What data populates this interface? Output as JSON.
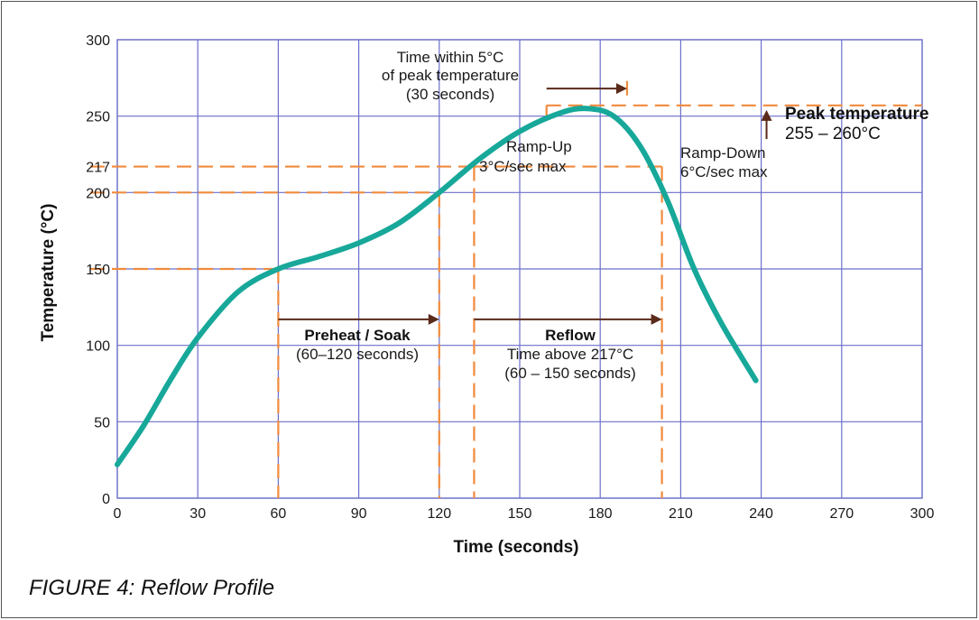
{
  "caption": "FIGURE 4: Reflow Profile",
  "chart_data": {
    "type": "line",
    "title": "",
    "xlabel": "Time (seconds)",
    "ylabel": "Temperature (°C)",
    "xlim": [
      0,
      300
    ],
    "ylim": [
      0,
      300
    ],
    "x_ticks": [
      0,
      30,
      60,
      90,
      120,
      150,
      180,
      210,
      240,
      270,
      300
    ],
    "y_ticks": [
      0,
      50,
      100,
      150,
      200,
      217,
      250,
      300
    ],
    "grid": true,
    "series": [
      {
        "name": "",
        "color": "#17a89a",
        "x": [
          0,
          10,
          20,
          30,
          45,
          60,
          75,
          90,
          105,
          120,
          135,
          150,
          165,
          175,
          185,
          195,
          205,
          215,
          225,
          238
        ],
        "y": [
          22,
          48,
          78,
          105,
          135,
          150,
          158,
          167,
          180,
          200,
          222,
          240,
          252,
          255,
          250,
          230,
          195,
          150,
          115,
          77
        ]
      }
    ],
    "guide_lines": {
      "color": "#f08a3c",
      "horizontal": [
        {
          "y": 150,
          "x_end": 60
        },
        {
          "y": 200,
          "x_end": 120
        },
        {
          "y": 217,
          "x_end": 133
        },
        {
          "y": 217,
          "x_start": 133,
          "x_end": 203
        },
        {
          "y": 257,
          "x_start": 160,
          "x_end": 300
        }
      ],
      "vertical": [
        {
          "x": 60,
          "y_top": 150
        },
        {
          "x": 120,
          "y_top": 200
        },
        {
          "x": 133,
          "y_top": 217
        },
        {
          "x": 203,
          "y_top": 217
        },
        {
          "x": 160,
          "y_top": 257,
          "y_bottom": 245
        },
        {
          "x": 190,
          "y_top": 273,
          "y_bottom": 262
        }
      ]
    },
    "annotations": {
      "peak_window": {
        "lines": [
          "Time within 5°C",
          "of peak temperature",
          "(30 seconds)"
        ],
        "arrow_x": [
          160,
          190
        ],
        "arrow_y": 268
      },
      "ramp_up": {
        "lines": [
          "Ramp-Up",
          "3°C/sec max"
        ]
      },
      "ramp_down": {
        "lines": [
          "Ramp-Down",
          "6°C/sec max"
        ]
      },
      "peak": {
        "title": "Peak temperature",
        "range": "255 – 260°C",
        "arrow_x": 242,
        "arrow_y": [
          235,
          254
        ]
      },
      "preheat": {
        "title": "Preheat / Soak",
        "detail": "(60–120 seconds)",
        "arrow_x": [
          60,
          120
        ],
        "arrow_y": 117
      },
      "reflow": {
        "title": "Reflow",
        "detail1": "Time above 217°C",
        "detail2": "(60 – 150 seconds)",
        "arrow_x": [
          133,
          203
        ],
        "arrow_y": 117
      }
    }
  }
}
